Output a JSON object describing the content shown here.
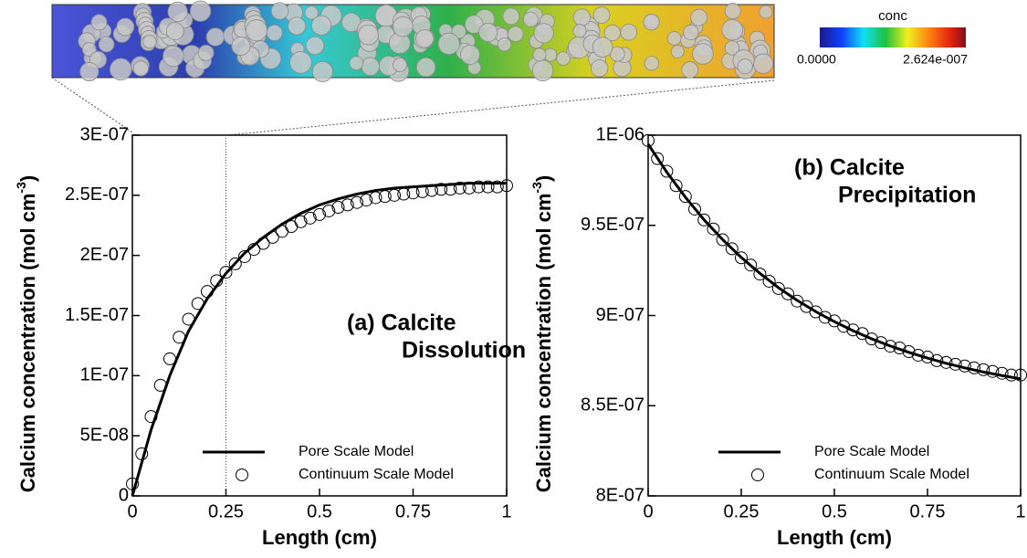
{
  "colorbar": {
    "title": "conc",
    "ticks": [
      {
        "value": 0,
        "label": "0.0000"
      },
      {
        "value": 2.624e-07,
        "label": "2.624e-007"
      }
    ]
  },
  "chart_data": [
    {
      "type": "line",
      "xlabel": "Length (cm)",
      "ylabel": {
        "text": "Calcium concentration (mol cm",
        "sup": "-3",
        "close": ")"
      },
      "annotation": [
        "(a) Calcite",
        "Dissolution"
      ],
      "xlim": [
        0,
        1
      ],
      "xticks": [
        0,
        0.25,
        0.5,
        0.75,
        1
      ],
      "ylim": [
        0,
        3e-07
      ],
      "yticks": [
        0,
        {
          "value": 5e-08,
          "label": "5E-08"
        },
        {
          "value": 1e-07,
          "label": "1E-07"
        },
        {
          "value": 1.5e-07,
          "label": "1.5E-07"
        },
        {
          "value": 2e-07,
          "label": "2E-07"
        },
        {
          "value": 2.5e-07,
          "label": "2.5E-07"
        },
        {
          "value": 3e-07,
          "label": "3E-07"
        }
      ],
      "vline": 0.25,
      "legend": "lower right",
      "series": [
        {
          "name": "Pore Scale Model",
          "color": "#000000",
          "style": "line",
          "x": [
            0,
            0.05,
            0.1,
            0.15,
            0.2,
            0.25,
            0.3,
            0.35,
            0.4,
            0.45,
            0.5,
            0.55,
            0.6,
            0.65,
            0.7,
            0.75,
            0.8,
            0.85,
            0.9,
            0.95,
            1
          ],
          "values": [
            0,
            5.5e-08,
            1e-07,
            1.37e-07,
            1.64e-07,
            1.85e-07,
            2.02e-07,
            2.15e-07,
            2.26e-07,
            2.35e-07,
            2.42e-07,
            2.47e-07,
            2.51e-07,
            2.54e-07,
            2.56e-07,
            2.57e-07,
            2.58e-07,
            2.59e-07,
            2.6e-07,
            2.6e-07,
            2.6e-07
          ]
        },
        {
          "name": "Continuum Scale Model",
          "color": "#000000",
          "style": "marker",
          "x": [
            0,
            0.025,
            0.05,
            0.075,
            0.1,
            0.125,
            0.15,
            0.175,
            0.2,
            0.225,
            0.25,
            0.275,
            0.3,
            0.325,
            0.35,
            0.375,
            0.4,
            0.425,
            0.45,
            0.475,
            0.5,
            0.525,
            0.55,
            0.575,
            0.6,
            0.625,
            0.65,
            0.675,
            0.7,
            0.725,
            0.75,
            0.775,
            0.8,
            0.825,
            0.85,
            0.875,
            0.9,
            0.925,
            0.95,
            0.975,
            1
          ],
          "values": [
            1e-08,
            3.5e-08,
            6.6e-08,
            9.2e-08,
            1.14e-07,
            1.32e-07,
            1.47e-07,
            1.6e-07,
            1.7e-07,
            1.79e-07,
            1.86e-07,
            1.93e-07,
            1.99e-07,
            2.05e-07,
            2.1e-07,
            2.15e-07,
            2.2e-07,
            2.24e-07,
            2.28e-07,
            2.31e-07,
            2.34e-07,
            2.37e-07,
            2.4e-07,
            2.42e-07,
            2.44e-07,
            2.46e-07,
            2.48e-07,
            2.49e-07,
            2.5e-07,
            2.51e-07,
            2.52e-07,
            2.53e-07,
            2.54e-07,
            2.55e-07,
            2.55e-07,
            2.56e-07,
            2.56e-07,
            2.57e-07,
            2.57e-07,
            2.57e-07,
            2.58e-07
          ]
        }
      ]
    },
    {
      "type": "line",
      "xlabel": "Length (cm)",
      "ylabel": {
        "text": "Calcium concentration (mol cm",
        "sup": "-3",
        "close": ")"
      },
      "annotation": [
        "(b) Calcite",
        "Precipitation"
      ],
      "xlim": [
        0,
        1
      ],
      "xticks": [
        0,
        0.25,
        0.5,
        0.75,
        1
      ],
      "ylim": [
        8e-07,
        1e-06
      ],
      "yticks": [
        {
          "value": 8e-07,
          "label": "8E-07"
        },
        {
          "value": 8.5e-07,
          "label": "8.5E-07"
        },
        {
          "value": 9e-07,
          "label": "9E-07"
        },
        {
          "value": 9.5e-07,
          "label": "9.5E-07"
        },
        {
          "value": 1e-06,
          "label": "1E-06"
        }
      ],
      "legend": "lower right",
      "series": [
        {
          "name": "Pore Scale Model",
          "color": "#000000",
          "style": "line",
          "x": [
            0,
            0.05,
            0.1,
            0.15,
            0.2,
            0.25,
            0.3,
            0.35,
            0.4,
            0.45,
            0.5,
            0.55,
            0.6,
            0.65,
            0.7,
            0.75,
            0.8,
            0.85,
            0.9,
            0.95,
            1
          ],
          "values": [
            9.95e-07,
            9.795e-07,
            9.656e-07,
            9.531e-07,
            9.421e-07,
            9.322e-07,
            9.234e-07,
            9.154e-07,
            9.084e-07,
            9.022e-07,
            8.966e-07,
            8.916e-07,
            8.871e-07,
            8.831e-07,
            8.796e-07,
            8.764e-07,
            8.735e-07,
            8.71e-07,
            8.687e-07,
            8.667e-07,
            8.649e-07
          ]
        },
        {
          "name": "Continuum Scale Model",
          "color": "#000000",
          "style": "marker",
          "x": [
            0,
            0.025,
            0.05,
            0.075,
            0.1,
            0.125,
            0.15,
            0.175,
            0.2,
            0.225,
            0.25,
            0.275,
            0.3,
            0.325,
            0.35,
            0.375,
            0.4,
            0.425,
            0.45,
            0.475,
            0.5,
            0.525,
            0.55,
            0.575,
            0.6,
            0.625,
            0.65,
            0.675,
            0.7,
            0.725,
            0.75,
            0.775,
            0.8,
            0.825,
            0.85,
            0.875,
            0.9,
            0.925,
            0.95,
            0.975,
            1
          ],
          "values": [
            9.97e-07,
            9.87e-07,
            9.8e-07,
            9.72e-07,
            9.66e-07,
            9.59e-07,
            9.53e-07,
            9.48e-07,
            9.42e-07,
            9.37e-07,
            9.32e-07,
            9.28e-07,
            9.23e-07,
            9.19e-07,
            9.15e-07,
            9.12e-07,
            9.08e-07,
            9.05e-07,
            9.02e-07,
            8.99e-07,
            8.97e-07,
            8.94e-07,
            8.92e-07,
            8.9e-07,
            8.87e-07,
            8.85e-07,
            8.83e-07,
            8.82e-07,
            8.8e-07,
            8.78e-07,
            8.77e-07,
            8.75e-07,
            8.74e-07,
            8.73e-07,
            8.72e-07,
            8.71e-07,
            8.7e-07,
            8.69e-07,
            8.68e-07,
            8.67e-07,
            8.67e-07
          ]
        }
      ]
    }
  ]
}
